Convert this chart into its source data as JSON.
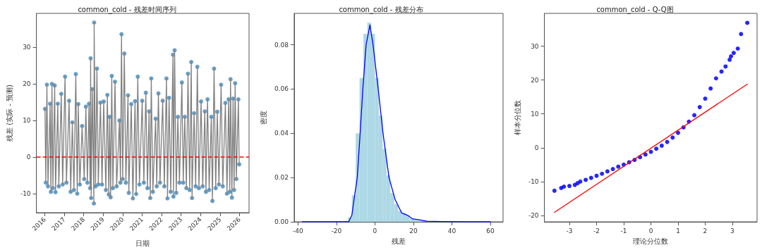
{
  "chart_data": [
    {
      "type": "scatter",
      "title": "common_cold - 残差时间序列",
      "xlabel": "日期",
      "ylabel": "残差 (实际 - 预测)",
      "x": [
        "2016-01-05",
        "2016-01-20",
        "2016-02-10",
        "2016-03-01",
        "2016-04-10",
        "2016-04-25",
        "2016-05-15",
        "2016-06-01",
        "2016-07-05",
        "2016-07-20",
        "2016-09-01",
        "2016-09-20",
        "2016-11-05",
        "2016-12-01",
        "2017-01-15",
        "2017-02-10",
        "2017-04-01",
        "2017-05-01",
        "2017-06-01",
        "2017-07-01",
        "2017-08-05",
        "2017-09-01",
        "2017-09-20",
        "2017-10-20",
        "2017-12-01",
        "2018-01-10",
        "2018-02-10",
        "2018-03-10",
        "2018-04-10",
        "2018-05-01",
        "2018-05-10",
        "2018-05-20",
        "2018-06-10",
        "2018-07-10",
        "2018-07-15",
        "2018-08-10",
        "2018-09-05",
        "2018-10-01",
        "2018-11-10",
        "2018-12-10",
        "2019-01-10",
        "2019-02-20",
        "2019-03-20",
        "2019-04-15",
        "2019-05-01",
        "2019-05-20",
        "2019-06-10",
        "2019-07-01",
        "2019-08-10",
        "2019-09-10",
        "2019-11-01",
        "2019-11-20",
        "2019-12-10",
        "2020-01-01",
        "2020-02-01",
        "2020-03-01",
        "2020-04-10",
        "2020-04-25",
        "2020-06-10",
        "2020-07-10",
        "2020-08-20",
        "2020-09-10",
        "2020-10-10",
        "2020-11-10",
        "2021-01-01",
        "2021-02-01",
        "2021-03-10",
        "2021-04-10",
        "2021-05-10",
        "2021-06-01",
        "2021-06-20",
        "2021-07-20",
        "2021-09-10",
        "2021-10-01",
        "2021-11-01",
        "2021-12-01",
        "2022-01-20",
        "2022-02-20",
        "2022-04-01",
        "2022-04-20",
        "2022-05-20",
        "2022-06-20",
        "2022-08-01",
        "2022-08-10",
        "2022-09-01",
        "2022-10-01",
        "2022-11-01",
        "2022-12-01",
        "2023-01-15",
        "2023-02-10",
        "2023-03-10",
        "2023-04-10",
        "2023-05-10",
        "2023-06-10",
        "2023-07-10",
        "2023-07-25",
        "2023-09-01",
        "2023-10-01",
        "2023-11-01",
        "2023-12-01",
        "2024-01-10",
        "2024-02-10",
        "2024-03-20",
        "2024-04-10",
        "2024-05-10",
        "2024-06-10",
        "2024-07-20",
        "2024-08-10",
        "2024-09-10",
        "2024-10-10",
        "2024-11-10",
        "2024-12-10",
        "2025-01-20",
        "2025-02-20",
        "2025-04-10",
        "2025-05-10",
        "2025-06-10",
        "2025-07-01",
        "2025-07-15",
        "2025-08-10",
        "2025-09-01",
        "2025-09-20",
        "2025-10-10",
        "2025-11-01",
        "2025-12-10",
        "2025-12-25"
      ],
      "series": [
        {
          "color": "#4f8fc0",
          "marker": "circle",
          "values": [
            13.2,
            -7,
            19.8,
            -8,
            14.6,
            -9.5,
            20,
            -8.5,
            19.6,
            -9.6,
            14.6,
            -8,
            17.3,
            -7.5,
            22,
            -7,
            15.4,
            -9.5,
            9.5,
            -9,
            22.7,
            -10,
            14.5,
            -7.5,
            8.5,
            -6,
            13.8,
            -7,
            14.6,
            -8.5,
            27,
            -11.2,
            18.6,
            -12.7,
            36.8,
            -8,
            24.2,
            -7.5,
            14.9,
            -7.5,
            15.2,
            -9,
            17,
            -10.2,
            11,
            -11,
            22.2,
            -8.5,
            20.6,
            -8,
            10,
            -7,
            33.6,
            -6,
            28.3,
            -7,
            16.9,
            -9.8,
            14.5,
            -11.3,
            15.3,
            -10.1,
            22,
            -7.5,
            15.4,
            -7,
            17.6,
            -8.5,
            12.5,
            -11.2,
            21.5,
            -9.5,
            10.5,
            -8,
            17.4,
            -7,
            15.4,
            -8,
            21.5,
            -11.3,
            16.2,
            -9.5,
            28,
            -10.8,
            29.2,
            -9.8,
            11,
            -7,
            20.4,
            -7,
            11,
            -8.5,
            22.8,
            -9,
            26,
            -11.2,
            12,
            -8,
            24.7,
            -8.5,
            15.2,
            -8,
            12.5,
            -9.5,
            15.8,
            -9,
            11,
            -12,
            24.2,
            -8.5,
            12.4,
            -7.5,
            19.8,
            -8,
            14.8,
            -10,
            15.8,
            -9.5,
            21.3,
            -11.1,
            16,
            -9,
            20.2,
            -6,
            15.8,
            -2
          ]
        },
        {
          "type": "line",
          "color": "#808080",
          "marker": "none",
          "values": [
            13.2,
            -7,
            19.8,
            -8,
            14.6,
            -9.5,
            20,
            -8.5,
            19.6,
            -9.6,
            14.6,
            -8,
            17.3,
            -7.5,
            22,
            -7,
            15.4,
            -9.5,
            9.5,
            -9,
            22.7,
            -10,
            14.5,
            -7.5,
            8.5,
            -6,
            13.8,
            -7,
            14.6,
            -8.5,
            27,
            -11.2,
            18.6,
            -12.7,
            36.8,
            -8,
            24.2,
            -7.5,
            14.9,
            -7.5,
            15.2,
            -9,
            17,
            -10.2,
            11,
            -11,
            22.2,
            -8.5,
            20.6,
            -8,
            10,
            -7,
            33.6,
            -6,
            28.3,
            -7,
            16.9,
            -9.8,
            14.5,
            -11.3,
            15.3,
            -10.1,
            22,
            -7.5,
            15.4,
            -7,
            17.6,
            -8.5,
            12.5,
            -11.2,
            21.5,
            -9.5,
            10.5,
            -8,
            17.4,
            -7,
            15.4,
            -8,
            21.5,
            -11.3,
            16.2,
            -9.5,
            28,
            -10.8,
            29.2,
            -9.8,
            11,
            -7,
            20.4,
            -7,
            11,
            -8.5,
            22.8,
            -9,
            26,
            -11.2,
            12,
            -8,
            24.7,
            -8.5,
            15.2,
            -8,
            12.5,
            -9.5,
            15.8,
            -9,
            11,
            -12,
            24.2,
            -8.5,
            12.4,
            -7.5,
            19.8,
            -8,
            14.8,
            -10,
            15.8,
            -9.5,
            21.3,
            -11.1,
            16,
            -9,
            20.2,
            -6,
            15.8,
            -2
          ]
        }
      ],
      "xlim": [
        "2015-07-28",
        "2026-06-28"
      ],
      "xticks": [
        {
          "value": "2016-01-01",
          "label": "2016"
        },
        {
          "value": "2017-01-01",
          "label": "2017"
        },
        {
          "value": "2018-01-01",
          "label": "2018"
        },
        {
          "value": "2019-01-01",
          "label": "2019"
        },
        {
          "value": "2020-01-01",
          "label": "2020"
        },
        {
          "value": "2021-01-01",
          "label": "2021"
        },
        {
          "value": "2022-01-01",
          "label": "2022"
        },
        {
          "value": "2023-01-01",
          "label": "2023"
        },
        {
          "value": "2024-01-01",
          "label": "2024"
        },
        {
          "value": "2025-01-01",
          "label": "2025"
        },
        {
          "value": "2026-01-01",
          "label": "2026"
        }
      ],
      "ylim": [
        -15.2,
        39.3
      ],
      "yticks": [
        -10,
        0,
        10,
        20,
        30
      ],
      "ref_lines": [
        {
          "axis": "y",
          "value": 0,
          "color": "#ff0000",
          "line_style": "dashed"
        }
      ],
      "grid": false
    },
    {
      "type": "histogram",
      "title": "common_cold - 残差分布",
      "xlabel": "残差",
      "ylabel": "密度",
      "bins": [
        -14,
        -12,
        -10,
        -8,
        -6,
        -4,
        -2,
        0,
        2,
        4,
        6,
        8,
        10,
        12,
        14,
        16,
        18,
        20,
        22,
        24,
        26,
        28,
        30,
        32,
        34,
        36,
        38
      ],
      "series": [
        {
          "color": "#add8e6",
          "values": [
            0.002,
            0.012,
            0.04,
            0.065,
            0.085,
            0.09,
            0.085,
            0.065,
            0.048,
            0.033,
            0.021,
            0.013,
            0.008,
            0.005,
            0.004,
            0.003,
            0.0015,
            0.0012,
            0.0008,
            null,
            null,
            null,
            0.0001,
            0.0001,
            0.0001,
            0.0001
          ]
        },
        {
          "type": "line",
          "color": "#0000ff",
          "marker": "none",
          "x": [
            -37.7,
            -13.7,
            -12,
            -10.9,
            -9.2,
            -7.7,
            -6.3,
            -4.6,
            -2.6,
            -1,
            1.7,
            4.2,
            7.3,
            10.5,
            13.9,
            16.8,
            19.7,
            22.6,
            27,
            35,
            46,
            60
          ],
          "values": [
            0,
            0,
            0.003,
            0.01,
            0.02,
            0.04,
            0.06,
            0.08,
            0.089,
            0.08,
            0.06,
            0.04,
            0.02,
            0.01,
            0.004,
            0.003,
            0.0013,
            0.001,
            0.0003,
            0.0001,
            0,
            0
          ]
        }
      ],
      "xlim": [
        -42,
        66.6
      ],
      "xticks": [
        -40,
        -20,
        0,
        20,
        40,
        60
      ],
      "ylim": [
        0,
        0.0942
      ],
      "yticks": [
        {
          "value": 0,
          "label": "0.00"
        },
        {
          "value": 0.02,
          "label": "0.02"
        },
        {
          "value": 0.04,
          "label": "0.04"
        },
        {
          "value": 0.06,
          "label": "0.06"
        },
        {
          "value": 0.08,
          "label": "0.08"
        }
      ],
      "grid": false
    },
    {
      "type": "scatter",
      "title": "common_cold - Q-Q图",
      "xlabel": "理论分位数",
      "ylabel": "样本分位数",
      "series": [
        {
          "color": "#0000ff",
          "marker": "circle",
          "x": [
            -3.55,
            -3.3,
            -3.2,
            -3,
            -2.8,
            -2.7,
            -2.6,
            -2.4,
            -2.2,
            -2,
            -1.8,
            -1.6,
            -1.4,
            -1.2,
            -1,
            -0.8,
            -0.6,
            -0.4,
            -0.2,
            0,
            0.2,
            0.4,
            0.6,
            0.8,
            1,
            1.2,
            1.4,
            1.6,
            1.8,
            2,
            2.2,
            2.4,
            2.6,
            2.75,
            2.9,
            2.95,
            3.05,
            3.2,
            3.32,
            3.55
          ],
          "values": [
            -12.7,
            -11.9,
            -11.5,
            -11.3,
            -11,
            -10.5,
            -10,
            -9.5,
            -8.9,
            -8.3,
            -7.7,
            -7,
            -6.3,
            -5.6,
            -5,
            -4.3,
            -3.6,
            -2.8,
            -2,
            -1.2,
            -0.3,
            0.6,
            1.7,
            3,
            4.4,
            6,
            7.7,
            9.6,
            12,
            14.5,
            17.5,
            20.5,
            22.5,
            24,
            26,
            27,
            28,
            29.3,
            33.6,
            36.9
          ]
        },
        {
          "type": "line",
          "color": "#ff0000",
          "marker": "none",
          "x": [
            -3.55,
            3.55
          ],
          "values": [
            -19.1,
            18.8
          ]
        }
      ],
      "xlim": [
        -3.92,
        3.91
      ],
      "xticks": [
        -3,
        -2,
        -1,
        0,
        1,
        2,
        3
      ],
      "ylim": [
        -21.9,
        39.7
      ],
      "yticks": [
        -20,
        -10,
        0,
        10,
        20,
        30
      ],
      "grid": false
    }
  ]
}
